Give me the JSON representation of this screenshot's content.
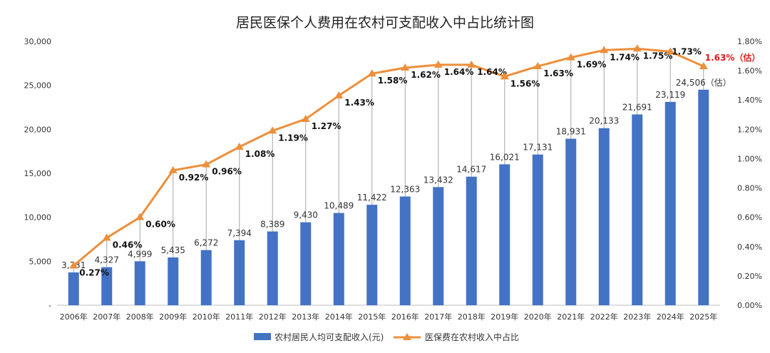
{
  "chart_data": {
    "type": "bar+line",
    "title": "居民医保个人费用在农村可支配收入中占比统计图",
    "categories": [
      "2006年",
      "2007年",
      "2008年",
      "2009年",
      "2010年",
      "2011年",
      "2012年",
      "2013年",
      "2014年",
      "2015年",
      "2016年",
      "2017年",
      "2018年",
      "2019年",
      "2020年",
      "2021年",
      "2022年",
      "2023年",
      "2024年",
      "2025年"
    ],
    "series": [
      {
        "name": "农村居民人均可支配收入(元)",
        "type": "bar",
        "axis": "left",
        "color": "#4472c4",
        "values": [
          3731,
          4327,
          4999,
          5435,
          6272,
          7394,
          8389,
          9430,
          10489,
          11422,
          12363,
          13432,
          14617,
          16021,
          17131,
          18931,
          20133,
          21691,
          23119,
          24506
        ],
        "labels": [
          "3,731",
          "4,327",
          "4,999",
          "5,435",
          "6,272",
          "7,394",
          "8,389",
          "9,430",
          "10,489",
          "11,422",
          "12,363",
          "13,432",
          "14,617",
          "16,021",
          "17,131",
          "18,931",
          "20,133",
          "21,691",
          "23,119",
          "24,506"
        ],
        "last_label_suffix": "（估）"
      },
      {
        "name": "医保费在农村收入中占比",
        "type": "line",
        "axis": "right",
        "color": "#ed8f3b",
        "values": [
          0.27,
          0.46,
          0.6,
          0.92,
          0.96,
          1.08,
          1.19,
          1.27,
          1.43,
          1.58,
          1.62,
          1.64,
          1.64,
          1.56,
          1.63,
          1.69,
          1.74,
          1.75,
          1.73,
          1.63
        ],
        "labels": [
          "0.27%",
          "0.46%",
          "0.60%",
          "0.92%",
          "0.96%",
          "1.08%",
          "1.19%",
          "1.27%",
          "1.43%",
          "1.58%",
          "1.62%",
          "1.64%",
          "1.64%",
          "1.56%",
          "1.63%",
          "1.69%",
          "1.74%",
          "1.75%",
          "1.73%",
          "1.63%（估）"
        ],
        "estimate_color": "#e01a1a"
      }
    ],
    "y_left": {
      "min": 0,
      "max": 30000,
      "ticks": [
        0,
        5000,
        10000,
        15000,
        20000,
        25000,
        30000
      ],
      "tick_labels": [
        "-",
        "5,000",
        "10,000",
        "15,000",
        "20,000",
        "25,000",
        "30,000"
      ]
    },
    "y_right": {
      "min": 0,
      "max": 1.8,
      "ticks": [
        0,
        0.2,
        0.4,
        0.6,
        0.8,
        1.0,
        1.2,
        1.4,
        1.6,
        1.8
      ],
      "tick_labels": [
        "0.00%",
        "0.20%",
        "0.40%",
        "0.60%",
        "0.80%",
        "1.00%",
        "1.20%",
        "1.40%",
        "1.60%",
        "1.80%"
      ]
    },
    "legend_position": "bottom-center"
  }
}
